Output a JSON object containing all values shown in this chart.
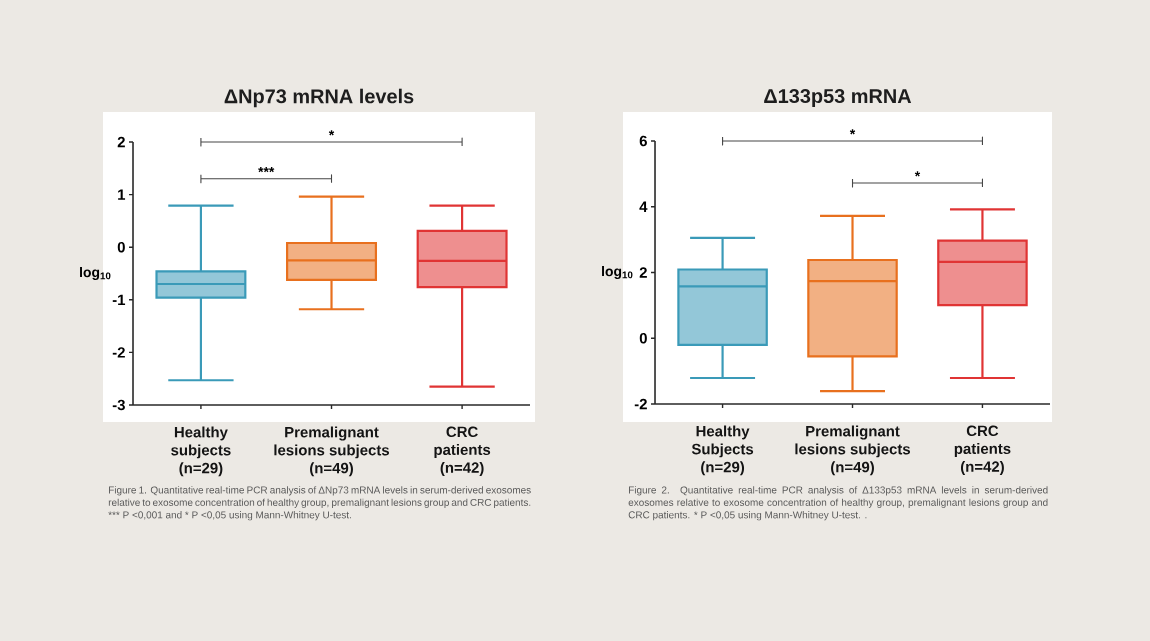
{
  "chart_data": [
    {
      "type": "box",
      "title": "ΔNp73 mRNA levels",
      "ylabel": "log$_{10}$",
      "categories": [
        "Healthy subjects (n=29)",
        "Premalignant lesions subjects (n=49)",
        "CRC patients (n=42)"
      ],
      "colors": [
        "#3a9ab8",
        "#e8701e",
        "#e03434"
      ],
      "boxes": [
        {
          "low": -2.53,
          "q1": -0.96,
          "median": -0.7,
          "q3": -0.46,
          "high": 0.79
        },
        {
          "low": -1.18,
          "q1": -0.62,
          "median": -0.25,
          "q3": 0.08,
          "high": 0.96
        },
        {
          "low": -2.65,
          "q1": -0.76,
          "median": -0.26,
          "q3": 0.31,
          "high": 0.79
        }
      ],
      "ylim": [
        -3,
        2
      ],
      "yticks": [
        -3,
        -2,
        -1,
        0,
        1,
        2
      ],
      "annotations": [
        "*",
        "***",
        "Figure 1. Quantitative real-time PCR analysis of ΔNp73 mRNA levels in serum-derived exosomes relative to exosome concentration of healthy group, premalignant lesions group and CRC patients. *** P <0,001 and * P <0,05 using Mann-Whitney U-test."
      ]
    },
    {
      "type": "box",
      "title": "Δ133p53 mRNA",
      "ylabel": "log$_{10}$",
      "categories": [
        "Healthy Subjects (n=29)",
        "Premalignant lesions subjects (n=49)",
        "CRC patients (n=42)"
      ],
      "colors": [
        "#3a9ab8",
        "#e8701e",
        "#e03434"
      ],
      "boxes": [
        {
          "low": -1.21,
          "q1": -0.2,
          "median": 1.58,
          "q3": 2.09,
          "high": 3.05
        },
        {
          "low": -1.61,
          "q1": -0.55,
          "median": 1.74,
          "q3": 2.38,
          "high": 3.72
        },
        {
          "low": -1.21,
          "q1": 1.01,
          "median": 2.32,
          "q3": 2.97,
          "high": 3.92
        }
      ],
      "ylim": [
        -2,
        6
      ],
      "yticks": [
        -2,
        0,
        2,
        4,
        6
      ],
      "annotations": [
        "*",
        "*",
        "Figure 2. Quantitative real-time PCR analysis of Δ133p53 mRNA levels in serum-derived exosomes relative to exosome concentration of healthy group, premalignant lesions group and CRC patients. *  P <0,05 using Mann-Whitney U-test. ."
      ]
    }
  ]
}
